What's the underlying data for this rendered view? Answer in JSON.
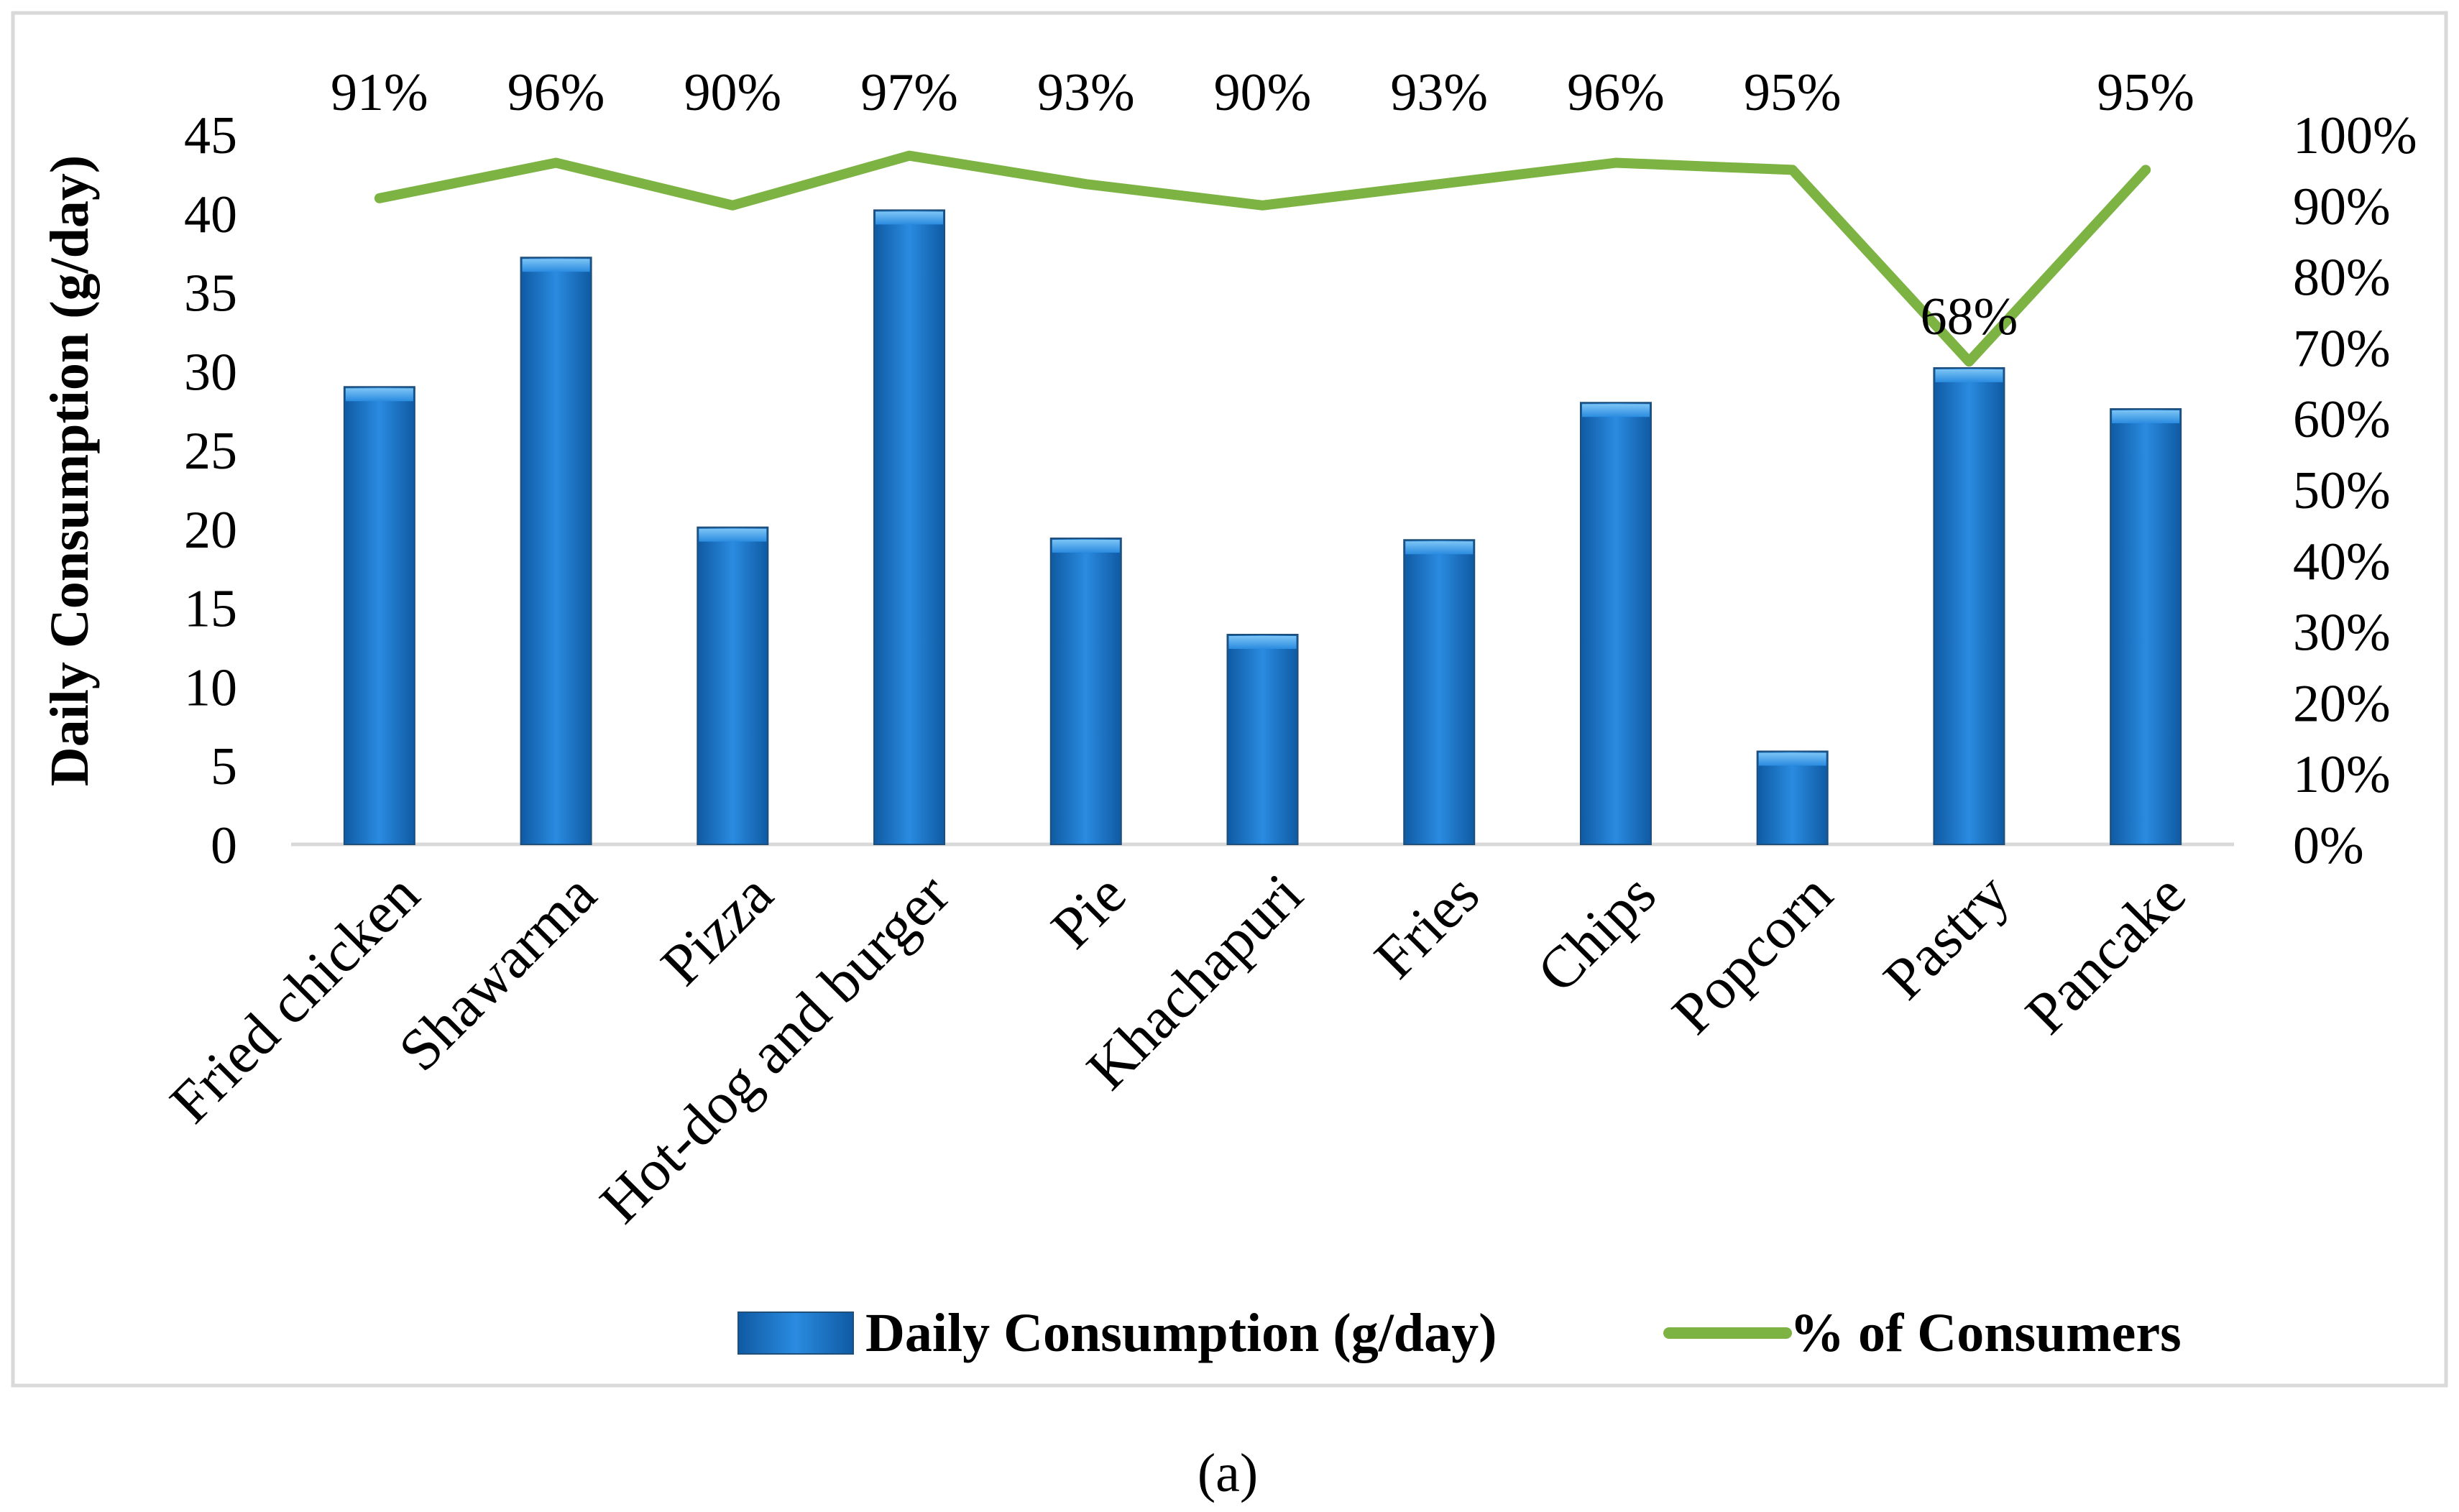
{
  "chart_data": {
    "type": "bar",
    "categories": [
      "Fried chicken",
      "Shawarma",
      "Pizza",
      "Hot-dog and burger",
      "Pie",
      "Khachapuri",
      "Fries",
      "Chips",
      "Popcorn",
      "Pastry",
      "Pancake"
    ],
    "series": [
      {
        "name": "Daily Consumption (g/day)",
        "type": "bar",
        "axis": "left",
        "values": [
          29.0,
          37.2,
          20.1,
          40.2,
          19.4,
          13.3,
          19.3,
          28.0,
          5.9,
          30.2,
          27.6
        ]
      },
      {
        "name": "% of Consumers",
        "type": "line",
        "axis": "right",
        "values": [
          91,
          96,
          90,
          97,
          93,
          90,
          93,
          96,
          95,
          68,
          95
        ],
        "labels": [
          "91%",
          "96%",
          "90%",
          "97%",
          "93%",
          "90%",
          "93%",
          "96%",
          "95%",
          "68%",
          "95%"
        ]
      }
    ],
    "ylabel": "Daily Consumption (g/day)",
    "ylim": [
      0,
      45
    ],
    "yticks": [
      "0",
      "5",
      "10",
      "15",
      "20",
      "25",
      "30",
      "35",
      "40",
      "45"
    ],
    "y2lim": [
      0,
      100
    ],
    "y2ticks": [
      "0%",
      "10%",
      "20%",
      "30%",
      "40%",
      "50%",
      "60%",
      "70%",
      "80%",
      "90%",
      "100%"
    ],
    "grid": false,
    "legend_position": "bottom-right",
    "caption": "(a)"
  },
  "colors": {
    "bar_fill_light": "#4aa3e3",
    "bar_fill": "#1e78c8",
    "bar_fill_dark": "#0f5aa3",
    "line": "#7cb342",
    "frame": "#d9d9d9"
  }
}
